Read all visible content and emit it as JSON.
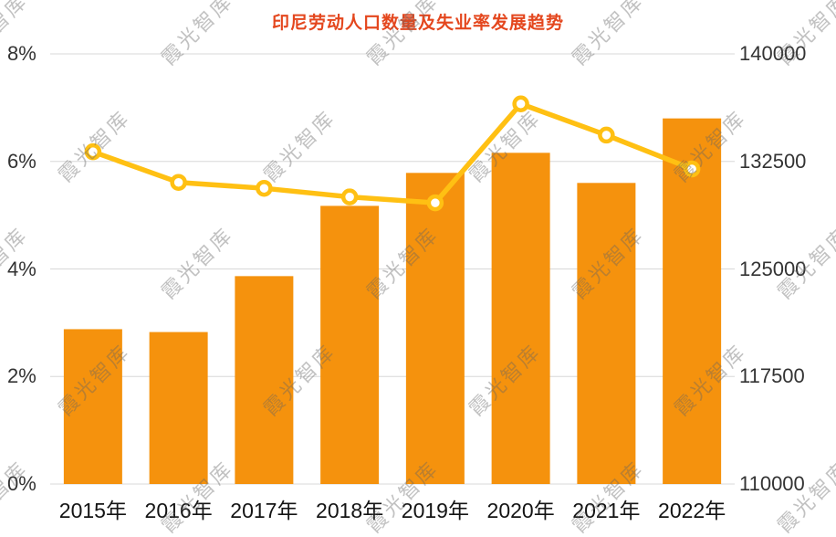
{
  "chart_data": {
    "type": "bar",
    "title": "印尼劳动人口数量及失业率发展趋势",
    "categories": [
      "2015年",
      "2016年",
      "2017年",
      "2018年",
      "2019年",
      "2020年",
      "2021年",
      "2022年"
    ],
    "series": [
      {
        "name": "劳动人口数量",
        "type": "bar",
        "axis": "right",
        "values": [
          120800,
          120600,
          124500,
          129400,
          131700,
          133100,
          131000,
          135500
        ]
      },
      {
        "name": "失业率",
        "type": "line",
        "axis": "left",
        "values": [
          6.18,
          5.61,
          5.5,
          5.34,
          5.23,
          7.07,
          6.49,
          5.86
        ]
      }
    ],
    "left_axis": {
      "ticks": [
        "0%",
        "2%",
        "4%",
        "6%",
        "8%"
      ],
      "min": 0,
      "max": 8
    },
    "right_axis": {
      "ticks": [
        "110000",
        "117500",
        "125000",
        "132500",
        "140000"
      ],
      "min": 110000,
      "max": 140000
    },
    "grid": true,
    "legend": "none"
  },
  "watermark": {
    "text": "霞光智库"
  },
  "colors": {
    "title": "#E4471E",
    "bar": "#F5920D",
    "line": "#FFC013",
    "marker_fill": "#FFFFFF",
    "grid": "#D8D8D8",
    "axis_text": "#333333",
    "x_axis_text": "#141414",
    "watermark": "#646464"
  }
}
